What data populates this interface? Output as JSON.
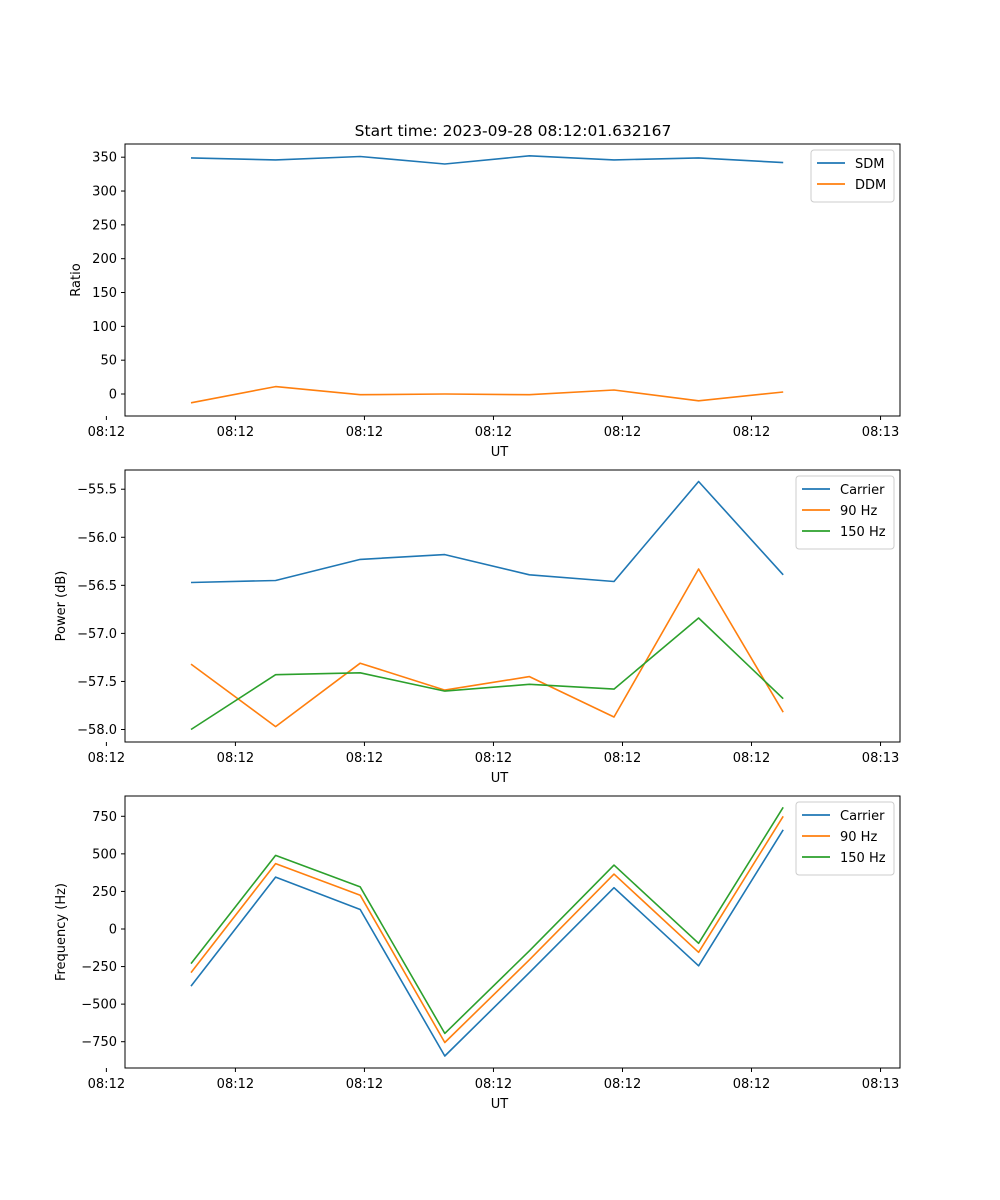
{
  "figure_title": "Start time: 2023-09-28 08:12:01.632167",
  "chart_data": [
    {
      "type": "line",
      "title": "Start time: 2023-09-28 08:12:01.632167",
      "xlabel": "UT",
      "ylabel": "Ratio",
      "x": [
        1,
        2,
        3,
        4,
        5,
        6,
        7,
        8
      ],
      "xlim": [
        0.22,
        9.38
      ],
      "xtick_positions": [
        0,
        1.525,
        3.05,
        4.575,
        6.1,
        7.625,
        9.15
      ],
      "xtick_labels": [
        "08:12",
        "08:12",
        "08:12",
        "08:12",
        "08:12",
        "08:12",
        "08:13"
      ],
      "ylim": [
        -32.5,
        369.5
      ],
      "yticks": [
        0,
        50,
        100,
        150,
        200,
        250,
        300,
        350
      ],
      "ytick_labels": [
        "0",
        "50",
        "100",
        "150",
        "200",
        "250",
        "300",
        "350"
      ],
      "legend": "top-right",
      "series": [
        {
          "name": "SDM",
          "color": "#1f77b4",
          "values": [
            349,
            346,
            351,
            340,
            352,
            346,
            349,
            342
          ]
        },
        {
          "name": "DDM",
          "color": "#ff7f0e",
          "values": [
            -13,
            11,
            -1,
            0,
            -1,
            6,
            -10,
            3
          ]
        }
      ]
    },
    {
      "type": "line",
      "title": "",
      "xlabel": "UT",
      "ylabel": "Power (dB)",
      "x": [
        1,
        2,
        3,
        4,
        5,
        6,
        7,
        8
      ],
      "xlim": [
        0.22,
        9.38
      ],
      "xtick_positions": [
        0,
        1.525,
        3.05,
        4.575,
        6.1,
        7.625,
        9.15
      ],
      "xtick_labels": [
        "08:12",
        "08:12",
        "08:12",
        "08:12",
        "08:12",
        "08:12",
        "08:13"
      ],
      "ylim": [
        -58.13,
        -55.3
      ],
      "yticks": [
        -58.0,
        -57.5,
        -57.0,
        -56.5,
        -56.0,
        -55.5
      ],
      "ytick_labels": [
        "−58.0",
        "−57.5",
        "−57.0",
        "−56.5",
        "−56.0",
        "−55.5"
      ],
      "legend": "top-right",
      "series": [
        {
          "name": "Carrier",
          "color": "#1f77b4",
          "values": [
            -56.47,
            -56.45,
            -56.23,
            -56.18,
            -56.39,
            -56.46,
            -55.42,
            -56.39
          ]
        },
        {
          "name": "90 Hz",
          "color": "#ff7f0e",
          "values": [
            -57.32,
            -57.97,
            -57.31,
            -57.59,
            -57.45,
            -57.87,
            -56.33,
            -57.82
          ]
        },
        {
          "name": "150 Hz",
          "color": "#2ca02c",
          "values": [
            -58.0,
            -57.43,
            -57.41,
            -57.6,
            -57.53,
            -57.58,
            -56.84,
            -57.68
          ]
        }
      ]
    },
    {
      "type": "line",
      "title": "",
      "xlabel": "UT",
      "ylabel": "Frequency (Hz)",
      "x": [
        1,
        2,
        3,
        4,
        5,
        6,
        7,
        8
      ],
      "xlim": [
        0.22,
        9.38
      ],
      "xtick_positions": [
        0,
        1.525,
        3.05,
        4.575,
        6.1,
        7.625,
        9.15
      ],
      "xtick_labels": [
        "08:12",
        "08:12",
        "08:12",
        "08:12",
        "08:12",
        "08:12",
        "08:13"
      ],
      "ylim": [
        -925,
        885
      ],
      "yticks": [
        -750,
        -500,
        -250,
        0,
        250,
        500,
        750
      ],
      "ytick_labels": [
        "−750",
        "−500",
        "−250",
        "0",
        "250",
        "500",
        "750"
      ],
      "legend": "top-right",
      "series": [
        {
          "name": "Carrier",
          "color": "#1f77b4",
          "values": [
            -380,
            345,
            130,
            -845,
            -290,
            275,
            -245,
            660
          ]
        },
        {
          "name": "90 Hz",
          "color": "#ff7f0e",
          "values": [
            -290,
            435,
            225,
            -755,
            -205,
            365,
            -155,
            750
          ]
        },
        {
          "name": "150 Hz",
          "color": "#2ca02c",
          "values": [
            -230,
            490,
            280,
            -695,
            -145,
            425,
            -95,
            810
          ]
        }
      ]
    }
  ]
}
